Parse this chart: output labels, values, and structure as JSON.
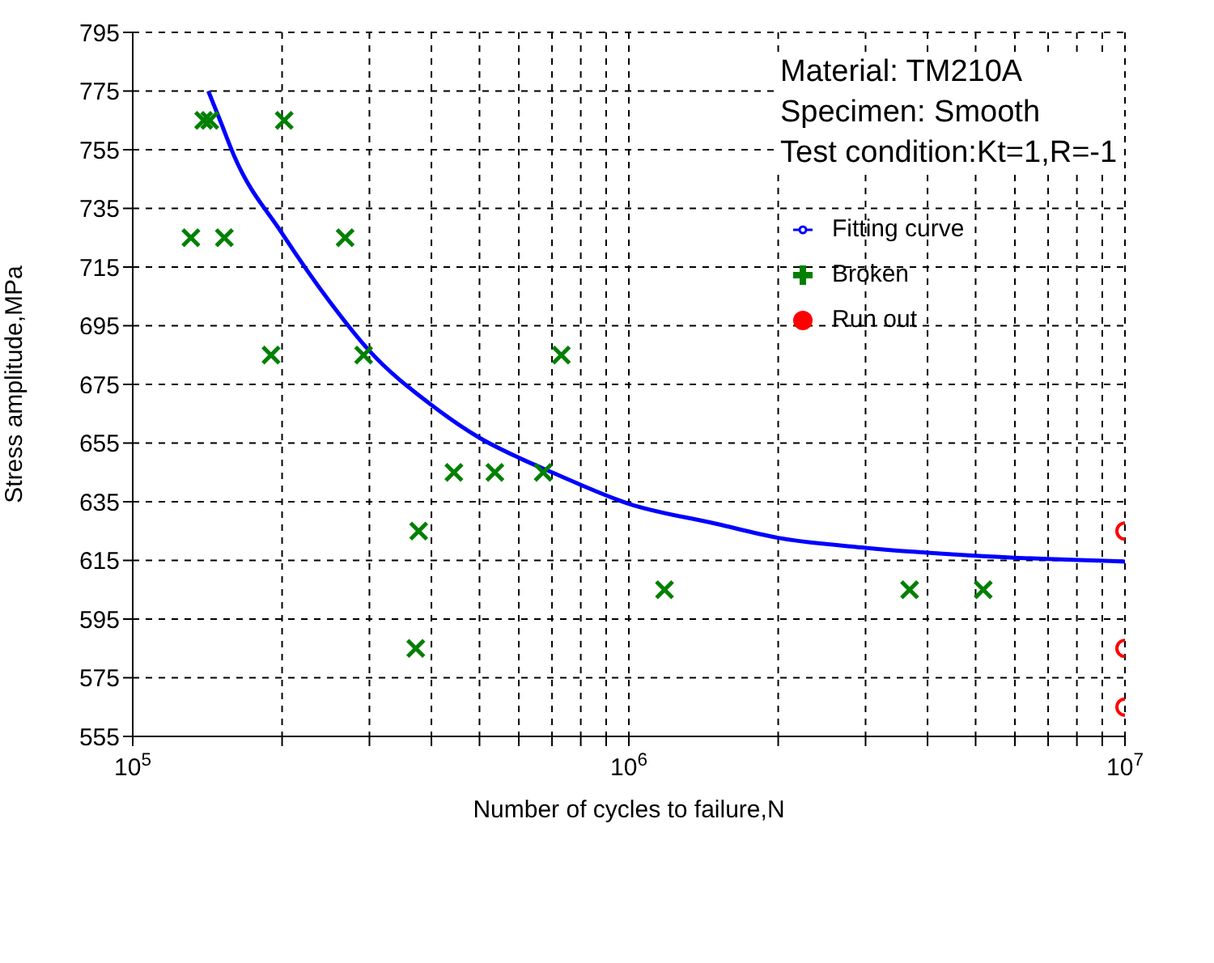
{
  "chart_data": {
    "type": "scatter",
    "xlabel": "Number of cycles to failure,N",
    "ylabel": "Stress amplitude,MPa",
    "log": "x",
    "grid": true,
    "legend": "top right",
    "annotations": [
      "Material: TM210A",
      "Specimen: Smooth",
      "Test condition:Kt=1,R=-1"
    ],
    "xlim": [
      100000,
      10000000
    ],
    "xticks": [
      {
        "value": 100000,
        "label": "10$^{5}$"
      },
      {
        "value": 200000,
        "label": null
      },
      {
        "value": 300000,
        "label": null
      },
      {
        "value": 400000,
        "label": null
      },
      {
        "value": 500000,
        "label": null
      },
      {
        "value": 600000,
        "label": null
      },
      {
        "value": 700000,
        "label": null
      },
      {
        "value": 800000,
        "label": null
      },
      {
        "value": 900000,
        "label": null
      },
      {
        "value": 1000000,
        "label": "10$^{6}$"
      },
      {
        "value": 2000000,
        "label": null
      },
      {
        "value": 3000000,
        "label": null
      },
      {
        "value": 4000000,
        "label": null
      },
      {
        "value": 5000000,
        "label": null
      },
      {
        "value": 6000000,
        "label": null
      },
      {
        "value": 7000000,
        "label": null
      },
      {
        "value": 8000000,
        "label": null
      },
      {
        "value": 9000000,
        "label": null
      },
      {
        "value": 10000000,
        "label": "10$^{7}$"
      }
    ],
    "ylim": [
      555,
      795
    ],
    "yticks": [
      555,
      575,
      595,
      615,
      635,
      655,
      675,
      695,
      715,
      735,
      755,
      775,
      795
    ],
    "series": [
      {
        "name": "Fitting curve",
        "type": "line",
        "color": "#0000ff",
        "marker": "none",
        "line_style": "solid",
        "x": [
          142000,
          150000,
          160000,
          200000,
          250000,
          300000,
          400000,
          500000,
          600000,
          700000,
          1000000,
          1500000,
          2000000,
          3000000,
          5000000,
          10000000
        ],
        "values": [
          775,
          765,
          753,
          726.5,
          703,
          686.4,
          668,
          656.8,
          650,
          645,
          634.3,
          627.5,
          622.7,
          619.3,
          616.6,
          614.6
        ]
      },
      {
        "name": "Broken",
        "color": "#008000",
        "marker": "cross",
        "x": [
          131000,
          139000,
          143000,
          153000,
          190000,
          202000,
          268000,
          292000,
          372000,
          377000,
          444000,
          537000,
          672000,
          731000,
          1180000,
          3680000,
          5180000
        ],
        "values": [
          725,
          765,
          765,
          725,
          685,
          765,
          725,
          685,
          585,
          625,
          645,
          645,
          645,
          685,
          605,
          605,
          605
        ]
      },
      {
        "name": "Run out",
        "color": "#ff0000",
        "marker": "circle",
        "x": [
          10000000,
          10000000,
          10000000
        ],
        "values": [
          625,
          585,
          565
        ]
      }
    ]
  }
}
